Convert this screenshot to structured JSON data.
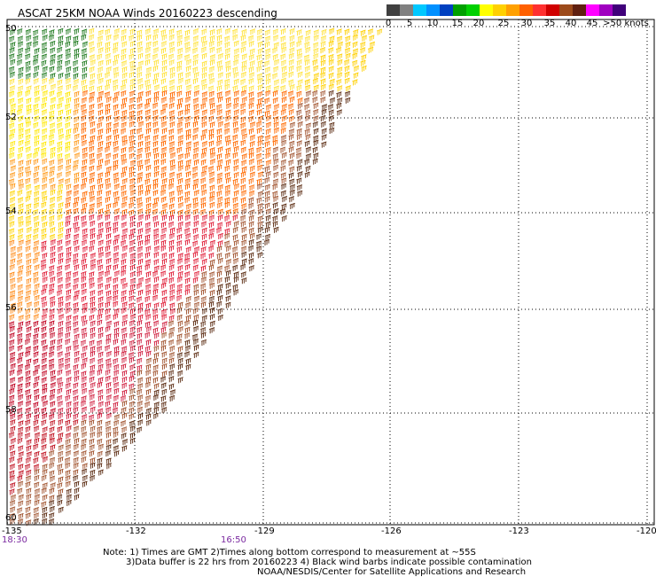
{
  "title": "ASCAT 25KM NOAA Winds 20160223 descending",
  "legend": {
    "colors": [
      "#404040",
      "#808080",
      "#00c8ff",
      "#0090ff",
      "#0040c0",
      "#00a000",
      "#00d000",
      "#ffff00",
      "#ffd000",
      "#ffa000",
      "#ff6000",
      "#ff3030",
      "#d00000",
      "#9c4a1a",
      "#602010",
      "#ff00ff",
      "#a000c0",
      "#40007a"
    ],
    "labels": [
      "0",
      "5",
      "10",
      "15",
      "20",
      "25",
      "30",
      "35",
      "40",
      "45",
      ">50 knots"
    ]
  },
  "map": {
    "lon_labels": [
      "-135",
      "-132",
      "-129",
      "-126",
      "-123",
      "-120"
    ],
    "lat_labels": [
      "50",
      "52",
      "54",
      "56",
      "58",
      "60"
    ],
    "time_labels": [
      "18:30",
      "16:50"
    ]
  },
  "notes": {
    "line1": "Note: 1) Times are GMT 2)Times along bottom correspond to measurement at ~55S",
    "line2": "3)Data buffer is 22 hrs from 20160223 4) Black wind barbs indicate possible contamination",
    "line3": "NOAA/NESDIS/Center for Satellite Applications and Research"
  }
}
